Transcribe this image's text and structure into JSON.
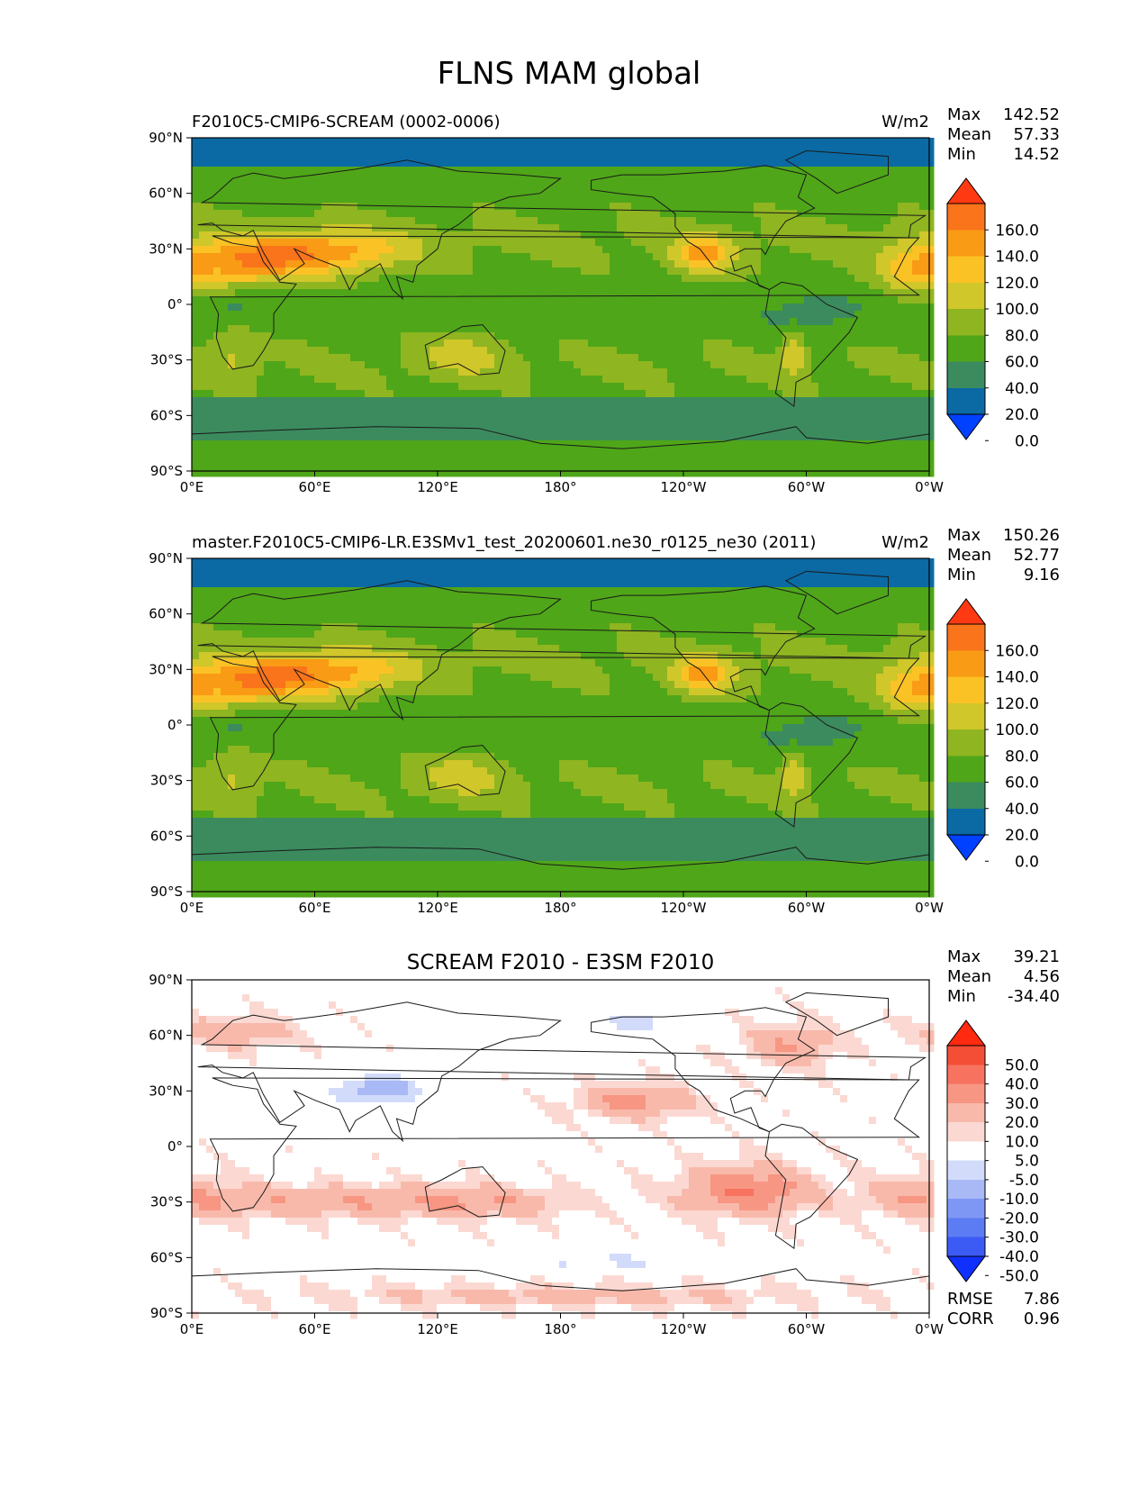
{
  "figure": {
    "title": "FLNS MAM global"
  },
  "colors": {
    "abs_levels": [
      "#0041ff",
      "#0b6aa4",
      "#3b8b5e",
      "#4fa619",
      "#8fb521",
      "#d0c72a",
      "#fbc226",
      "#f99b15",
      "#f9741a",
      "#ff3a12"
    ],
    "diff_levels": [
      "#1030ff",
      "#3c5bf5",
      "#5c7cf4",
      "#7f97f4",
      "#a9b9f6",
      "#d2dbfa",
      "#ffffff",
      "#fbd9d2",
      "#f8b9ab",
      "#f79683",
      "#f7735f",
      "#f44e36",
      "#ff2a10"
    ],
    "coast": "#1a1a1a"
  },
  "chart_data": [
    {
      "type": "heatmap",
      "panel": "test",
      "title": "F2010C5-CMIP6-SCREAM (0002-0006)",
      "units": "W/m2",
      "stats": {
        "max_label": "Max",
        "max": "142.52",
        "mean_label": "Mean",
        "mean": "57.33",
        "min_label": "Min",
        "min": "14.52"
      },
      "xticks": [
        "0°E",
        "60°E",
        "120°E",
        "180°",
        "120°W",
        "60°W",
        "0°W"
      ],
      "yticks": [
        "90°N",
        "60°N",
        "30°N",
        "0°",
        "30°S",
        "60°S",
        "90°S"
      ],
      "xlim": [
        0,
        360
      ],
      "ylim": [
        -90,
        90
      ],
      "colorbar": {
        "ticks": [
          "160.0",
          "140.0",
          "120.0",
          "100.0",
          "80.0",
          "60.0",
          "40.0",
          "20.0",
          "0.0"
        ],
        "extend": "both"
      },
      "approx_regions": [
        {
          "region": "Sahara / Arabia",
          "value": 130
        },
        {
          "region": "SW North America",
          "value": 130
        },
        {
          "region": "Australia interior",
          "value": 90
        },
        {
          "region": "Southern Ocean",
          "value": 35
        },
        {
          "region": "Tropical oceans",
          "value": 55
        },
        {
          "region": "Arctic",
          "value": 15
        }
      ]
    },
    {
      "type": "heatmap",
      "panel": "reference",
      "title": "master.F2010C5-CMIP6-LR.E3SMv1_test_20200601.ne30_r0125_ne30 (2011)",
      "units": "W/m2",
      "stats": {
        "max_label": "Max",
        "max": "150.26",
        "mean_label": "Mean",
        "mean": "52.77",
        "min_label": "Min",
        "min": "9.16"
      },
      "xticks": [
        "0°E",
        "60°E",
        "120°E",
        "180°",
        "120°W",
        "60°W",
        "0°W"
      ],
      "yticks": [
        "90°N",
        "60°N",
        "30°N",
        "0°",
        "30°S",
        "60°S",
        "90°S"
      ],
      "xlim": [
        0,
        360
      ],
      "ylim": [
        -90,
        90
      ],
      "colorbar": {
        "ticks": [
          "160.0",
          "140.0",
          "120.0",
          "100.0",
          "80.0",
          "60.0",
          "40.0",
          "20.0",
          "0.0"
        ],
        "extend": "both"
      },
      "approx_regions": [
        {
          "region": "Sahara / Arabia",
          "value": 130
        },
        {
          "region": "SW North America",
          "value": 135
        },
        {
          "region": "Australia interior",
          "value": 90
        },
        {
          "region": "Southern Ocean",
          "value": 25
        },
        {
          "region": "Tropical oceans",
          "value": 50
        },
        {
          "region": "Arctic",
          "value": 10
        }
      ]
    },
    {
      "type": "heatmap",
      "panel": "difference",
      "title": "SCREAM F2010 - E3SM F2010",
      "stats": {
        "max_label": "Max",
        "max": "39.21",
        "mean_label": "Mean",
        "mean": "4.56",
        "min_label": "Min",
        "min": "-34.40"
      },
      "metrics": {
        "rmse_label": "RMSE",
        "rmse": "7.86",
        "corr_label": "CORR",
        "corr": "0.96"
      },
      "xticks": [
        "0°E",
        "60°E",
        "120°E",
        "180°",
        "120°W",
        "60°W",
        "0°W"
      ],
      "yticks": [
        "90°N",
        "60°N",
        "30°N",
        "0°",
        "30°S",
        "60°S",
        "90°S"
      ],
      "xlim": [
        0,
        360
      ],
      "ylim": [
        -90,
        90
      ],
      "colorbar": {
        "ticks": [
          "50.0",
          "40.0",
          "30.0",
          "20.0",
          "10.0",
          "5.0",
          "-5.0",
          "-10.0",
          "-20.0",
          "-30.0",
          "-40.0",
          "-50.0"
        ],
        "extend": "both"
      },
      "approx_regions": [
        {
          "region": "SE Pacific subtropics",
          "value": 25
        },
        {
          "region": "NE Pacific subtropics",
          "value": 20
        },
        {
          "region": "South Atlantic / Indian subtropics",
          "value": 15
        },
        {
          "region": "Tibetan Plateau",
          "value": -15
        },
        {
          "region": "North Pacific high latitudes",
          "value": -8
        },
        {
          "region": "Antarctic coast",
          "value": 10
        }
      ]
    }
  ]
}
